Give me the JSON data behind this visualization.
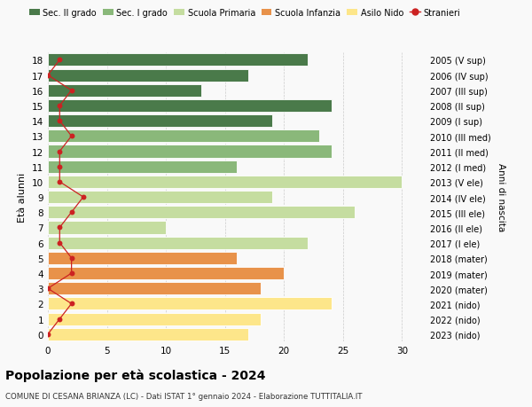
{
  "ages": [
    0,
    1,
    2,
    3,
    4,
    5,
    6,
    7,
    8,
    9,
    10,
    11,
    12,
    13,
    14,
    15,
    16,
    17,
    18
  ],
  "bar_values": [
    17,
    18,
    24,
    18,
    20,
    16,
    22,
    10,
    26,
    19,
    30,
    16,
    24,
    23,
    19,
    24,
    13,
    17,
    22
  ],
  "bar_colors": [
    "#fde68a",
    "#fde68a",
    "#fde68a",
    "#e8924a",
    "#e8924a",
    "#e8924a",
    "#c5dda0",
    "#c5dda0",
    "#c5dda0",
    "#c5dda0",
    "#c5dda0",
    "#8ab87a",
    "#8ab87a",
    "#8ab87a",
    "#4a7a4a",
    "#4a7a4a",
    "#4a7a4a",
    "#4a7a4a",
    "#4a7a4a"
  ],
  "stranieri_values": [
    0,
    1,
    2,
    0,
    2,
    2,
    1,
    1,
    2,
    3,
    1,
    1,
    1,
    2,
    1,
    1,
    2,
    0,
    1
  ],
  "right_labels": [
    "2023 (nido)",
    "2022 (nido)",
    "2021 (nido)",
    "2020 (mater)",
    "2019 (mater)",
    "2018 (mater)",
    "2017 (I ele)",
    "2016 (II ele)",
    "2015 (III ele)",
    "2014 (IV ele)",
    "2013 (V ele)",
    "2012 (I med)",
    "2011 (II med)",
    "2010 (III med)",
    "2009 (I sup)",
    "2008 (II sup)",
    "2007 (III sup)",
    "2006 (IV sup)",
    "2005 (V sup)"
  ],
  "legend_labels": [
    "Sec. II grado",
    "Sec. I grado",
    "Scuola Primaria",
    "Scuola Infanzia",
    "Asilo Nido",
    "Stranieri"
  ],
  "legend_colors": [
    "#4a7a4a",
    "#8ab87a",
    "#c5dda0",
    "#e8924a",
    "#fde68a",
    "#cc2222"
  ],
  "ylabel": "Età alunni",
  "right_ylabel": "Anni di nascita",
  "title": "Popolazione per età scolastica - 2024",
  "subtitle": "COMUNE DI CESANA BRIANZA (LC) - Dati ISTAT 1° gennaio 2024 - Elaborazione TUTTITALIA.IT",
  "xlim": [
    0,
    32
  ],
  "xticks": [
    0,
    5,
    10,
    15,
    20,
    25,
    30
  ],
  "bg_color": "#f9f9f9",
  "bar_height": 0.82
}
